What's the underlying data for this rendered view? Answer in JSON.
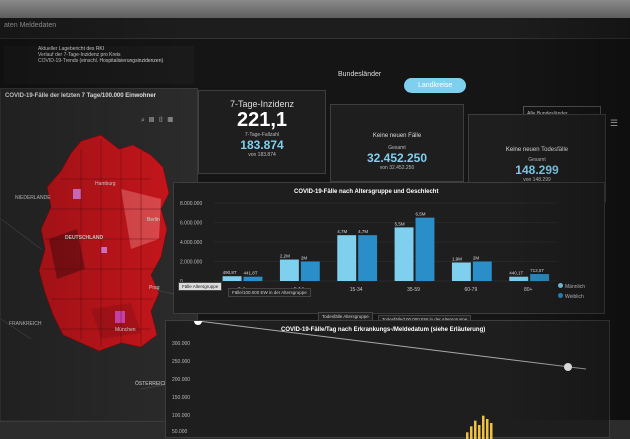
{
  "window": {
    "title": "aten Meldedaten"
  },
  "news": {
    "line1": "Aktueller Lagebericht des RKI",
    "line2": "Verlauf der 7-Tage-Inzidenz pro Kreis",
    "line3": "COVID-19-Trends (einschl. Hospitalisierungsinzidenzen)"
  },
  "map": {
    "title": "COVID-19-Fälle der letzten 7 Tage/100.000 Einwohner",
    "labels": {
      "niederlande": "NIEDERLANDE",
      "deutschland": "DEUTSCHLAND",
      "hamburg": "Hamburg",
      "berlin": "Berlin",
      "prag": "Prag",
      "muenchen": "München",
      "frankreich": "FRANKREICH",
      "oesterreich": "ÖSTERREICH"
    },
    "colors": {
      "high": "#c8161c",
      "mid": "#e04a4e",
      "low": "#8a1016",
      "highlight": "#e87ad6"
    }
  },
  "tabs": {
    "tab1": "Bundesländer",
    "tab2": "Landkreise",
    "active": "tab2"
  },
  "filter": {
    "selected": "Alle Bundesländer"
  },
  "cards": {
    "inzidenz": {
      "title": "7-Tage-Inzidenz",
      "value": "221,1",
      "sub_label": "7-Tage-Fallzahl",
      "sub_value": "183.874",
      "sub_note": "von 183.874"
    },
    "faelle": {
      "title": "Keine neuen Fälle",
      "label": "Gesamt",
      "value": "32.452.250",
      "note": "von 32.452.250"
    },
    "tode": {
      "title": "Keine neuen Todesfälle",
      "label": "Gesamt",
      "value": "148.299",
      "note": "von 148.299"
    }
  },
  "bar_chart": {
    "title": "COVID-19-Fälle nach Altersgruppe und Geschlecht",
    "subtabs": [
      "Fälle Altersgruppe",
      "Fälle/100.000 EW in der Altersgruppe",
      "Todesfälle Altersgruppe",
      "Todesfälle/100.000 EW in der Altersgruppe"
    ],
    "legend": [
      "Männlich",
      "Weiblich"
    ]
  },
  "line_chart": {
    "title": "COVID-19-Fälle/Tag nach Erkrankungs-/Meldedatum (siehe Erläuterung)",
    "yticks": [
      "300.000",
      "250.000",
      "200.000",
      "150.000",
      "100.000",
      "50.000"
    ]
  },
  "chart_data": [
    {
      "type": "bar",
      "title": "COVID-19-Fälle nach Altersgruppe und Geschlecht",
      "categories": [
        "0-4",
        "5-14",
        "15-34",
        "35-59",
        "60-79",
        "80+"
      ],
      "series": [
        {
          "name": "Männlich",
          "color": "#7fd0ee",
          "values": [
            490000,
            2200000,
            4700000,
            5500000,
            1900000,
            440000
          ],
          "labels": [
            "490,8T",
            "2,2M",
            "4,7M",
            "5,5M",
            "1,9M",
            "440,1T"
          ]
        },
        {
          "name": "Weiblich",
          "color": "#2a8fc9",
          "values": [
            441000,
            2000000,
            4700000,
            6500000,
            2000000,
            713000
          ],
          "labels": [
            "441,8T",
            "2M",
            "4,7M",
            "6,5M",
            "2M",
            "713,5T"
          ]
        }
      ],
      "yticks": [
        "8.000.000",
        "6.000.000",
        "4.000.000",
        "2.000.000",
        "0"
      ],
      "ylim": [
        0,
        8000000
      ]
    },
    {
      "type": "bar",
      "title": "COVID-19-Fälle/Tag nach Erkrankungs-/Meldedatum (siehe Erläuterung)",
      "values": [
        20000,
        38000,
        55000,
        42000,
        70000,
        60000,
        48000
      ],
      "ylim": [
        0,
        300000
      ]
    }
  ]
}
